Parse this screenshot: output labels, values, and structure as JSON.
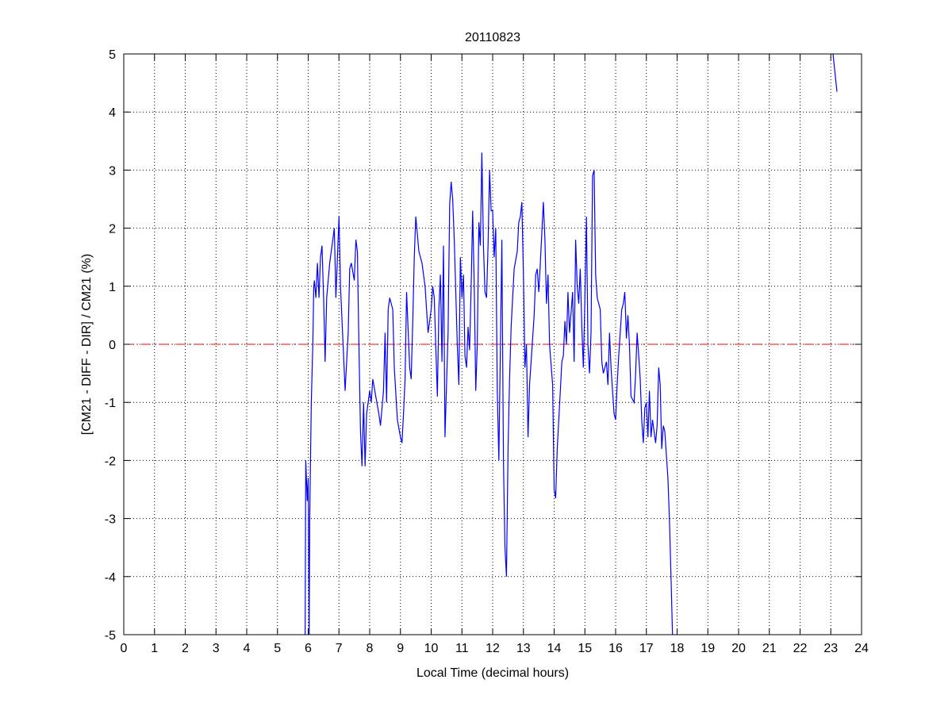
{
  "chart_data": {
    "type": "line",
    "title": "20110823",
    "xlabel": "Local Time (decimal hours)",
    "ylabel": "[CM21 - DIFF - DIR] / CM21 (%)",
    "xlim": [
      0,
      24
    ],
    "ylim": [
      -5,
      5
    ],
    "xticks": [
      0,
      1,
      2,
      3,
      4,
      5,
      6,
      7,
      8,
      9,
      10,
      11,
      12,
      13,
      14,
      15,
      16,
      17,
      18,
      19,
      20,
      21,
      22,
      23,
      24
    ],
    "yticks": [
      -5,
      -4,
      -3,
      -2,
      -1,
      0,
      1,
      2,
      3,
      4,
      5
    ],
    "grid": true,
    "reference_line": {
      "y": 0,
      "color": "#ff0000",
      "style": "dash-dot"
    },
    "series_color": "#0000ff",
    "segments": [
      {
        "x": [
          5.9,
          5.92,
          5.97,
          6.0,
          6.03,
          6.05,
          6.1,
          6.15,
          6.18,
          6.2,
          6.25,
          6.3,
          6.35,
          6.4,
          6.45,
          6.5,
          6.55,
          6.6,
          6.7,
          6.8,
          6.85,
          6.9,
          7.0,
          7.05,
          7.15,
          7.2,
          7.3,
          7.35,
          7.4,
          7.5,
          7.55,
          7.6,
          7.65,
          7.7,
          7.75,
          7.8,
          7.85,
          7.9,
          8.0,
          8.05,
          8.1,
          8.2,
          8.3,
          8.35,
          8.45,
          8.5,
          8.55,
          8.6,
          8.65,
          8.75,
          8.8,
          8.9,
          9.0,
          9.05,
          9.1,
          9.15,
          9.2,
          9.3,
          9.35,
          9.4,
          9.45,
          9.5,
          9.6,
          9.7,
          9.8,
          9.9,
          10.0,
          10.05,
          10.1,
          10.2,
          10.25,
          10.3,
          10.35,
          10.4,
          10.45,
          10.55,
          10.6,
          10.65,
          10.7,
          10.75,
          10.85,
          10.9,
          10.95,
          11.0,
          11.05,
          11.1,
          11.15,
          11.2,
          11.25,
          11.3,
          11.35,
          11.4,
          11.45,
          11.5,
          11.55,
          11.6,
          11.65,
          11.7,
          11.75,
          11.8,
          11.85,
          11.9,
          11.95,
          12.0,
          12.05,
          12.1,
          12.15,
          12.2,
          12.3,
          12.35,
          12.4,
          12.45,
          12.5,
          12.55,
          12.6,
          12.7,
          12.8,
          12.85,
          12.9,
          12.95,
          13.0,
          13.05,
          13.1,
          13.15,
          13.2,
          13.3,
          13.35,
          13.4,
          13.45,
          13.5,
          13.55,
          13.65,
          13.7,
          13.75,
          13.8,
          13.85,
          13.95,
          14.0,
          14.05,
          14.1,
          14.2,
          14.25,
          14.3,
          14.35,
          14.4,
          14.45,
          14.5,
          14.6,
          14.65,
          14.7,
          14.75,
          14.8,
          14.85,
          14.9,
          14.95,
          15.0,
          15.05,
          15.1,
          15.15,
          15.2,
          15.25,
          15.3,
          15.35,
          15.4,
          15.5,
          15.55,
          15.6,
          15.7,
          15.75,
          15.8,
          15.85,
          15.9,
          15.95,
          16.0,
          16.05,
          16.1,
          16.15,
          16.2,
          16.25,
          16.3,
          16.35,
          16.4,
          16.45,
          16.5,
          16.6,
          16.65,
          16.7,
          16.75,
          16.8,
          16.85,
          16.9,
          16.95,
          17.0,
          17.05,
          17.1,
          17.15,
          17.2,
          17.3,
          17.35,
          17.4,
          17.45,
          17.5,
          17.55,
          17.6,
          17.7,
          17.75,
          17.8,
          17.85
        ],
        "y": [
          -5,
          -2.0,
          -2.7,
          -2.3,
          -5,
          -3.0,
          -1.0,
          0.0,
          1.0,
          1.1,
          0.8,
          1.4,
          0.8,
          1.5,
          1.7,
          0.8,
          -0.3,
          0.8,
          1.4,
          1.8,
          2.0,
          0.8,
          2.2,
          1.0,
          -0.2,
          -0.8,
          0.2,
          1.3,
          1.4,
          1.1,
          1.8,
          1.6,
          0.0,
          -1.5,
          -2.1,
          -1.0,
          -2.1,
          -1.2,
          -0.8,
          -1.0,
          -0.6,
          -0.9,
          -1.2,
          -1.4,
          -0.8,
          0.2,
          -1.0,
          0.6,
          0.8,
          0.6,
          -0.4,
          -1.3,
          -1.6,
          -1.7,
          -1.2,
          -0.6,
          0.9,
          -0.4,
          -0.6,
          0.4,
          1.5,
          2.2,
          1.6,
          1.4,
          1.0,
          0.2,
          0.6,
          1.0,
          0.8,
          -0.9,
          0.6,
          1.2,
          -0.3,
          1.7,
          -1.6,
          0.2,
          2.4,
          2.8,
          2.5,
          1.8,
          0.0,
          -0.7,
          1.5,
          0.8,
          1.2,
          -0.2,
          -0.4,
          0.3,
          -0.1,
          1.0,
          2.3,
          1.0,
          -0.8,
          0.0,
          2.1,
          1.7,
          3.3,
          1.7,
          0.9,
          0.8,
          1.7,
          3.0,
          2.3,
          2.3,
          1.5,
          2.0,
          -0.8,
          -2.0,
          1.8,
          -2.0,
          -3.5,
          -4.0,
          -1.8,
          -0.6,
          0.3,
          1.3,
          1.6,
          2.1,
          2.2,
          2.45,
          1.2,
          -0.4,
          0.0,
          -1.6,
          -0.7,
          0.1,
          0.5,
          1.2,
          1.3,
          0.9,
          1.4,
          2.45,
          1.8,
          0.7,
          1.2,
          0.0,
          -0.7,
          -2.5,
          -2.65,
          -1.8,
          -0.8,
          -0.3,
          -0.2,
          0.4,
          0.0,
          0.9,
          0.2,
          0.9,
          -0.3,
          1.8,
          1.0,
          0.7,
          1.3,
          0.3,
          -0.4,
          0.8,
          2.2,
          0.0,
          -0.5,
          0.2,
          2.9,
          3.0,
          1.2,
          0.8,
          0.6,
          -0.3,
          -0.5,
          -0.3,
          -0.7,
          0.2,
          -0.4,
          -0.8,
          -1.2,
          -1.3,
          -0.7,
          -0.2,
          0.2,
          0.6,
          0.7,
          0.9,
          0.1,
          0.5,
          0.0,
          -0.9,
          -1.0,
          -0.5,
          0.2,
          -0.2,
          -0.6,
          -1.3,
          -1.7,
          -1.1,
          -1.0,
          -1.6,
          -0.8,
          -1.6,
          -1.3,
          -1.7,
          -1.4,
          -0.4,
          -0.7,
          -1.8,
          -1.4,
          -1.5,
          -2.3,
          -3.0,
          -4.0,
          -5.0
        ]
      },
      {
        "x": [
          23.07,
          23.2
        ],
        "y": [
          5.0,
          4.35
        ]
      }
    ]
  }
}
